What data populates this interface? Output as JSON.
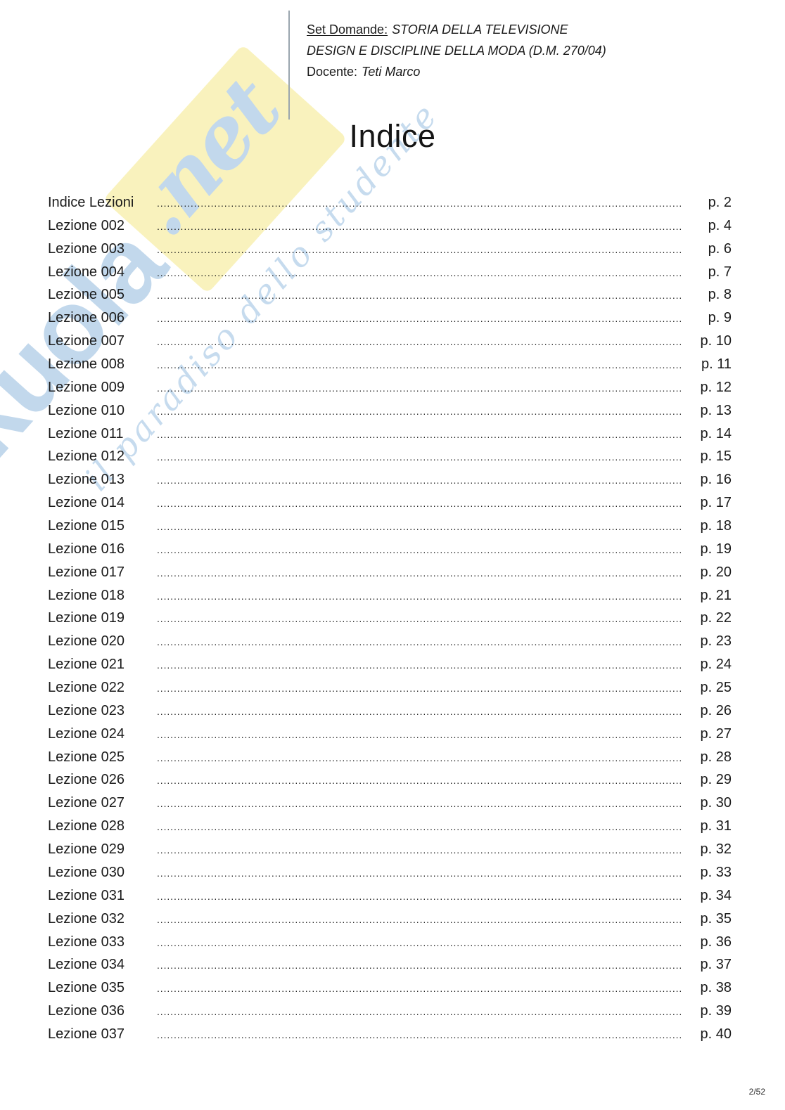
{
  "header": {
    "label_set_domande": "Set Domande:",
    "course_line1": "STORIA DELLA TELEVISIONE",
    "course_line2": "DESIGN E DISCIPLINE DELLA MODA (D.M. 270/04)",
    "label_docente": "Docente:",
    "docente_name": "Teti Marco"
  },
  "title": "Indice",
  "toc": {
    "entries": [
      {
        "label": "Indice Lezioni",
        "page": "p. 2"
      },
      {
        "label": "Lezione 002",
        "page": "p. 4"
      },
      {
        "label": "Lezione 003",
        "page": "p. 6"
      },
      {
        "label": "Lezione 004",
        "page": "p. 7"
      },
      {
        "label": "Lezione 005",
        "page": "p. 8"
      },
      {
        "label": "Lezione 006",
        "page": "p. 9"
      },
      {
        "label": "Lezione 007",
        "page": "p. 10"
      },
      {
        "label": "Lezione 008",
        "page": "p. 11"
      },
      {
        "label": "Lezione 009",
        "page": "p. 12"
      },
      {
        "label": "Lezione 010",
        "page": "p. 13"
      },
      {
        "label": "Lezione 011",
        "page": "p. 14"
      },
      {
        "label": "Lezione 012",
        "page": "p. 15"
      },
      {
        "label": "Lezione 013",
        "page": "p. 16"
      },
      {
        "label": "Lezione 014",
        "page": "p. 17"
      },
      {
        "label": "Lezione 015",
        "page": "p. 18"
      },
      {
        "label": "Lezione 016",
        "page": "p. 19"
      },
      {
        "label": "Lezione 017",
        "page": "p. 20"
      },
      {
        "label": "Lezione 018",
        "page": "p. 21"
      },
      {
        "label": "Lezione 019",
        "page": "p. 22"
      },
      {
        "label": "Lezione 020",
        "page": "p. 23"
      },
      {
        "label": "Lezione 021",
        "page": "p. 24"
      },
      {
        "label": "Lezione 022",
        "page": "p. 25"
      },
      {
        "label": "Lezione 023",
        "page": "p. 26"
      },
      {
        "label": "Lezione 024",
        "page": "p. 27"
      },
      {
        "label": "Lezione 025",
        "page": "p. 28"
      },
      {
        "label": "Lezione 026",
        "page": "p. 29"
      },
      {
        "label": "Lezione 027",
        "page": "p. 30"
      },
      {
        "label": "Lezione 028",
        "page": "p. 31"
      },
      {
        "label": "Lezione 029",
        "page": "p. 32"
      },
      {
        "label": "Lezione 030",
        "page": "p. 33"
      },
      {
        "label": "Lezione 031",
        "page": "p. 34"
      },
      {
        "label": "Lezione 032",
        "page": "p. 35"
      },
      {
        "label": "Lezione 033",
        "page": "p. 36"
      },
      {
        "label": "Lezione 034",
        "page": "p. 37"
      },
      {
        "label": "Lezione 035",
        "page": "p. 38"
      },
      {
        "label": "Lezione 036",
        "page": "p. 39"
      },
      {
        "label": "Lezione 037",
        "page": "p. 40"
      }
    ]
  },
  "watermark": {
    "brand": "skuola",
    "suffix": ".net",
    "slogan": "il paradiso dello studente",
    "colors": {
      "blue": "#c2d8ec",
      "blue_script": "#c6dbee",
      "yellow": "#f9f2bd"
    }
  },
  "footer": {
    "page_indicator": "2/52"
  }
}
